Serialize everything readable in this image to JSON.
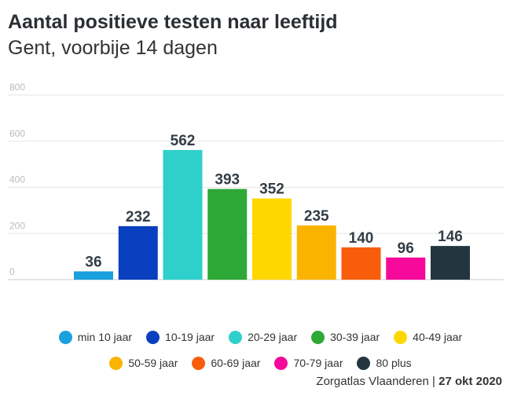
{
  "chart_data": {
    "type": "bar",
    "title": "Aantal positieve testen naar leeftijd",
    "subtitle": "Gent, voorbije 14 dagen",
    "categories": [
      "min 10 jaar",
      "10-19 jaar",
      "20-29 jaar",
      "30-39 jaar",
      "40-49 jaar",
      "50-59 jaar",
      "60-69 jaar",
      "70-79 jaar",
      "80 plus"
    ],
    "values": [
      36,
      232,
      562,
      393,
      352,
      235,
      140,
      96,
      146
    ],
    "colors": [
      "#1aa0dd",
      "#0a3fbf",
      "#2fd0cb",
      "#2ea836",
      "#fed700",
      "#fab400",
      "#f75d0b",
      "#f5089a",
      "#233640"
    ],
    "yticks": [
      "0",
      "200",
      "400",
      "600",
      "800"
    ],
    "ylim": [
      0,
      800
    ],
    "grid": true,
    "xlabel": "",
    "ylabel": "",
    "legend": "bottom"
  },
  "source": {
    "name": "Zorgatlas Vlaanderen",
    "separator": "|",
    "date": "27 okt 2020"
  }
}
